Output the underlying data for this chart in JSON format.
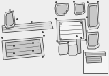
{
  "bg_color": "#eeeeee",
  "line_color": "#444444",
  "fill_light": "#e0e0e0",
  "fill_mid": "#c8c8c8",
  "fill_dark": "#aaaaaa",
  "fill_white": "#f5f5f5",
  "legend_bg": "#ffffff"
}
